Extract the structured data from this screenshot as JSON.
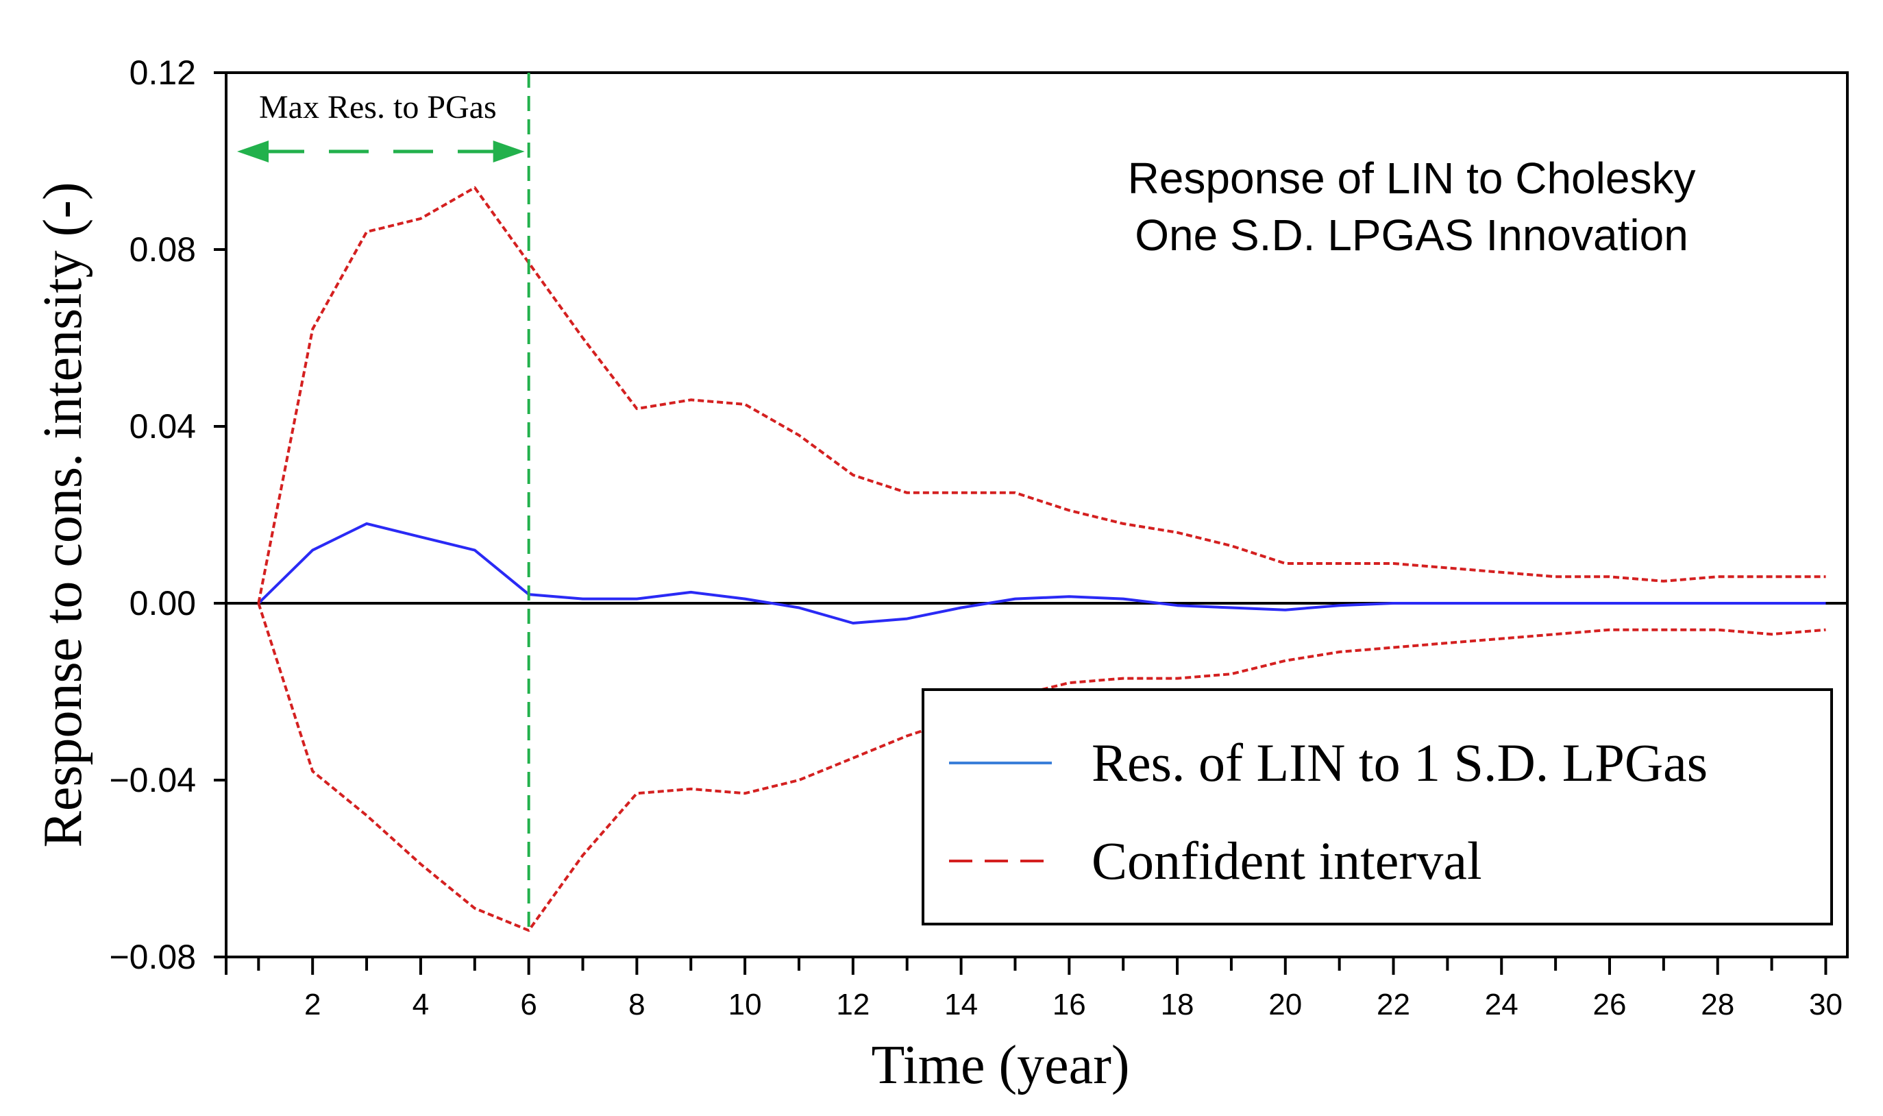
{
  "chart_data": {
    "type": "line",
    "title_lines": [
      "Response of LIN to Cholesky",
      "One S.D. LPGAS Innovation"
    ],
    "xlabel": "Time (year)",
    "ylabel": "Response to cons. intensity (-)",
    "xlim": [
      0.4,
      30.4
    ],
    "ylim": [
      -0.08,
      0.12
    ],
    "x_ticks": [
      2,
      4,
      6,
      8,
      10,
      12,
      14,
      16,
      18,
      20,
      22,
      24,
      26,
      28,
      30
    ],
    "x_tick_labels": [
      "2",
      "4",
      "6",
      "8",
      "10",
      "12",
      "14",
      "16",
      "18",
      "20",
      "22",
      "24",
      "26",
      "28",
      "30"
    ],
    "y_ticks": [
      -0.08,
      -0.04,
      0.0,
      0.04,
      0.08,
      0.12
    ],
    "y_tick_labels": [
      "−0.08",
      "−0.04",
      "0.00",
      "0.04",
      "0.08",
      "0.12"
    ],
    "zero_line": true,
    "grid": false,
    "legend_position": "bottom-right",
    "colors": {
      "response": "#2a2af5",
      "response_legend": "#3b7fd9",
      "interval": "#d42020",
      "marker": "#22b14c",
      "axis": "#000000"
    },
    "series": [
      {
        "name": "Res. of LIN to 1 S.D. LPGas",
        "style": "solid",
        "x": [
          1,
          2,
          3,
          4,
          5,
          6,
          7,
          8,
          9,
          10,
          11,
          12,
          13,
          14,
          15,
          16,
          17,
          18,
          19,
          20,
          21,
          22,
          23,
          24,
          25,
          26,
          27,
          28,
          29,
          30
        ],
        "y": [
          0.0,
          0.012,
          0.018,
          0.015,
          0.012,
          0.002,
          0.001,
          0.001,
          0.0025,
          0.001,
          -0.001,
          -0.0045,
          -0.0035,
          -0.001,
          0.001,
          0.0015,
          0.001,
          -0.0005,
          -0.001,
          -0.0015,
          -0.0005,
          0.0,
          0.0,
          0.0,
          0.0,
          0.0,
          0.0,
          0.0,
          0.0,
          0.0
        ]
      },
      {
        "name": "Confident interval",
        "style": "dashed",
        "x": [
          1,
          2,
          3,
          4,
          5,
          6,
          7,
          8,
          9,
          10,
          11,
          12,
          13,
          14,
          15,
          16,
          17,
          18,
          19,
          20,
          21,
          22,
          23,
          24,
          25,
          26,
          27,
          28,
          29,
          30
        ],
        "y": [
          0.0,
          0.062,
          0.084,
          0.087,
          0.094,
          0.077,
          0.06,
          0.044,
          0.046,
          0.045,
          0.038,
          0.029,
          0.025,
          0.025,
          0.025,
          0.021,
          0.018,
          0.016,
          0.013,
          0.009,
          0.009,
          0.009,
          0.008,
          0.007,
          0.006,
          0.006,
          0.005,
          0.006,
          0.006,
          0.006
        ]
      },
      {
        "name": "Confident interval (lower)",
        "style": "dashed",
        "x": [
          1,
          2,
          3,
          4,
          5,
          6,
          7,
          8,
          9,
          10,
          11,
          12,
          13,
          14,
          15,
          16,
          17,
          18,
          19,
          20,
          21,
          22,
          23,
          24,
          25,
          26,
          27,
          28,
          29,
          30
        ],
        "y": [
          0.0,
          -0.038,
          -0.048,
          -0.059,
          -0.069,
          -0.074,
          -0.057,
          -0.043,
          -0.042,
          -0.043,
          -0.04,
          -0.035,
          -0.03,
          -0.026,
          -0.021,
          -0.018,
          -0.017,
          -0.017,
          -0.016,
          -0.013,
          -0.011,
          -0.01,
          -0.009,
          -0.008,
          -0.007,
          -0.006,
          -0.006,
          -0.006,
          -0.007,
          -0.006
        ]
      }
    ],
    "annotations": {
      "marker_x": 6,
      "marker_label": "Max Res. to PGas"
    },
    "legend": {
      "items": [
        {
          "label": "Res. of LIN to 1 S.D. LPGas",
          "style": "solid"
        },
        {
          "label": "Confident interval",
          "style": "dashed"
        }
      ]
    }
  }
}
